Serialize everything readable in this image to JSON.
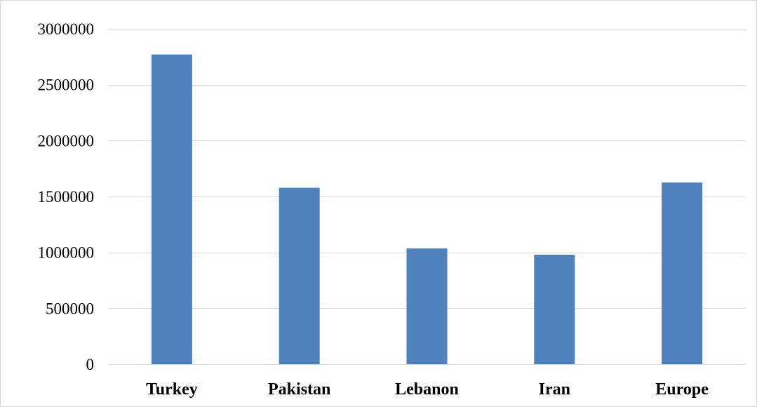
{
  "chart_data": {
    "type": "bar",
    "title": "",
    "xlabel": "",
    "ylabel": "",
    "categories": [
      "Turkey",
      "Pakistan",
      "Lebanon",
      "Iran",
      "Europe"
    ],
    "values": [
      2770000,
      1578000,
      1035000,
      979000,
      1625000
    ],
    "ylim": [
      0,
      3000000
    ],
    "yticks": [
      0,
      500000,
      1000000,
      1500000,
      2000000,
      2500000,
      3000000
    ],
    "ytick_labels": [
      "0",
      "500000",
      "1000000",
      "1500000",
      "2000000",
      "2500000",
      "3000000"
    ],
    "grid": "horizontal",
    "legend": "none",
    "bar_color": "#4f81bd",
    "grid_color": "#d9d9d9"
  }
}
